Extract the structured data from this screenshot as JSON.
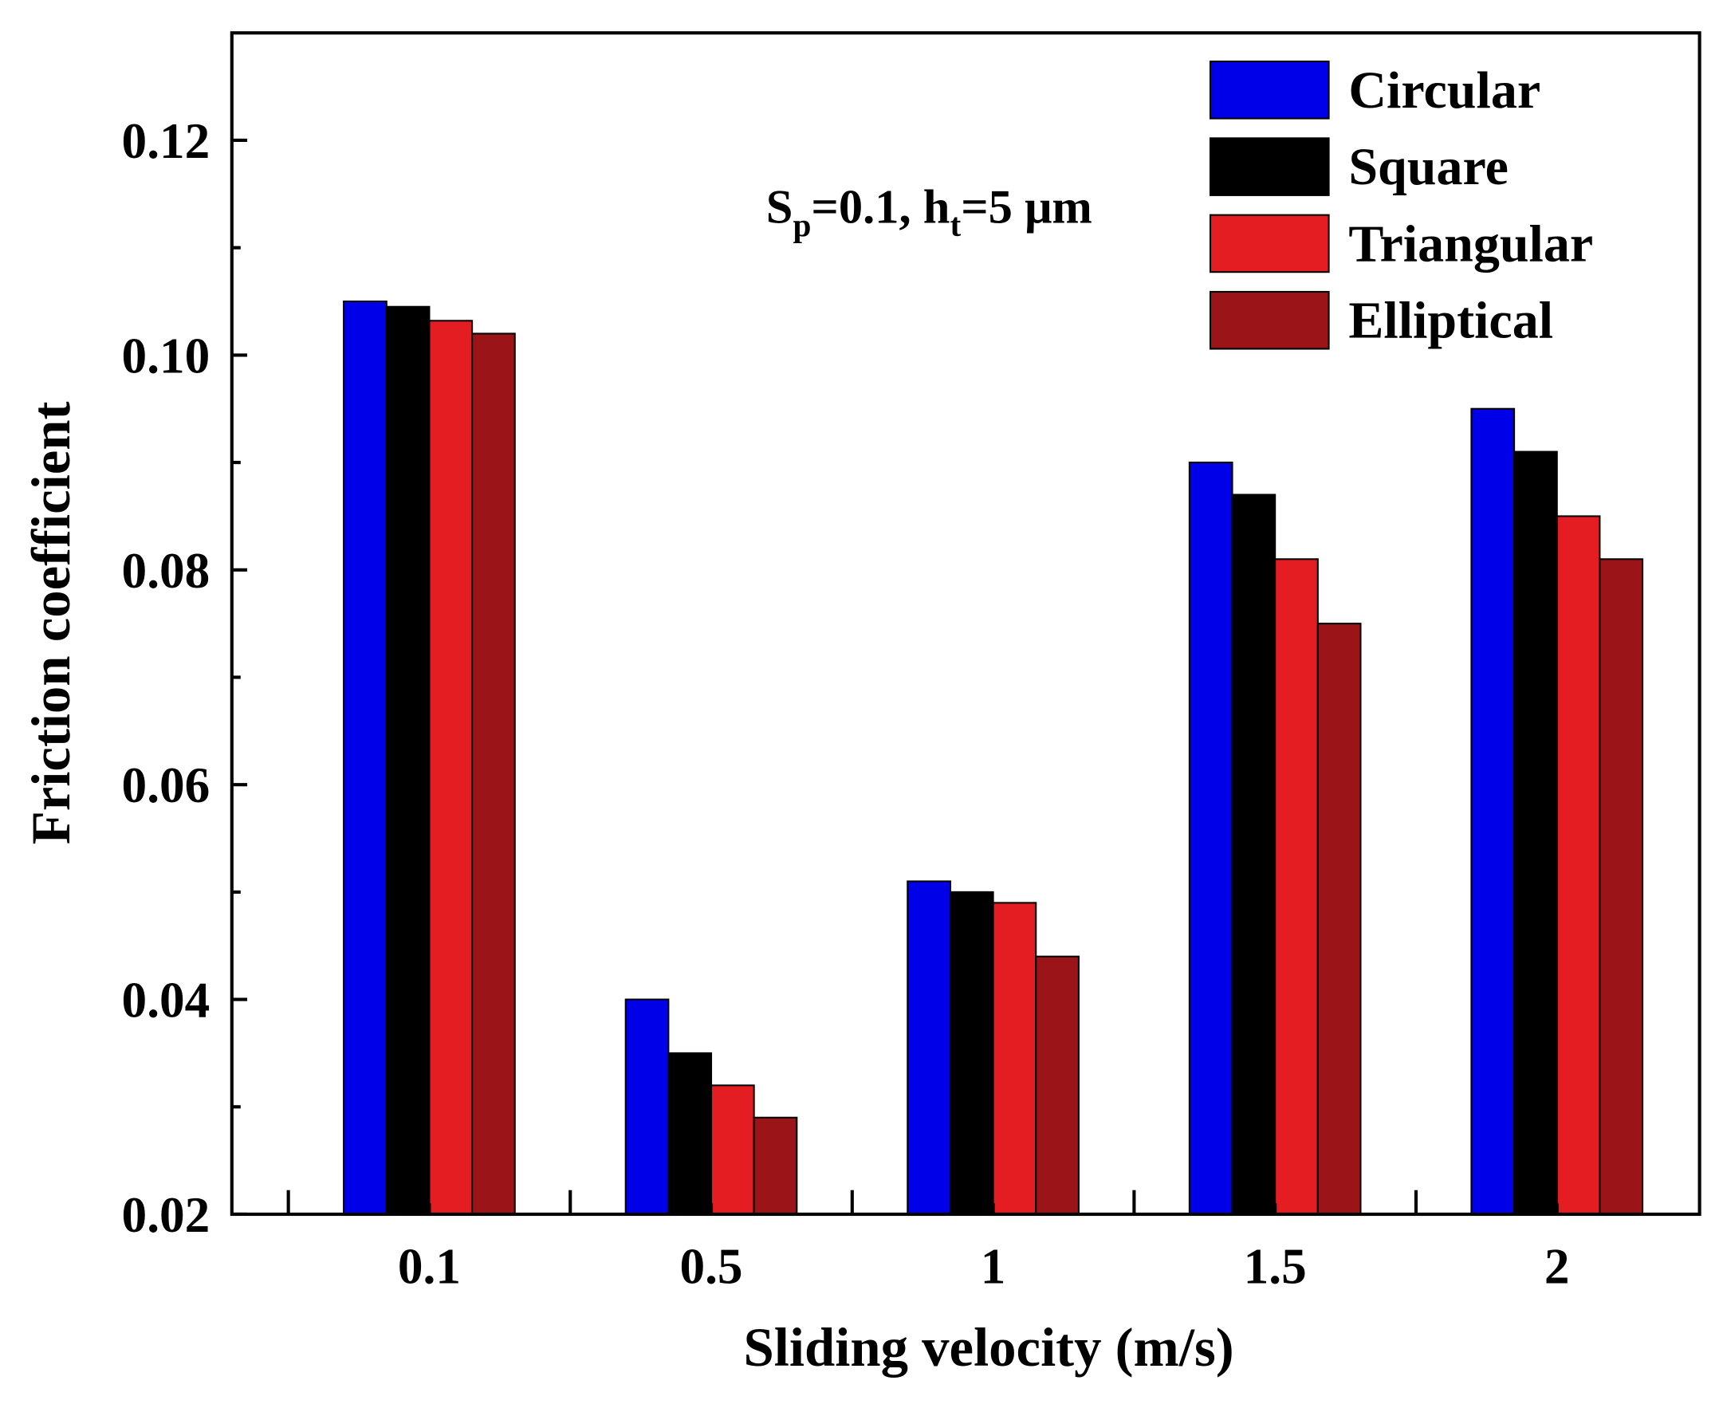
{
  "chart_data": {
    "type": "bar",
    "title": "",
    "xlabel": "Sliding velocity (m/s)",
    "ylabel": "Friction coefficient",
    "categories": [
      "0.1",
      "0.5",
      "1",
      "1.5",
      "2"
    ],
    "ylim": [
      0.02,
      0.13
    ],
    "yticks": [
      "0.02",
      "0.04",
      "0.06",
      "0.08",
      "0.10",
      "0.12"
    ],
    "ytick_values": [
      0.02,
      0.04,
      0.06,
      0.08,
      0.1,
      0.12
    ],
    "grid": false,
    "legend_position": "top-right",
    "annotation_parts": [
      {
        "text": "S",
        "sub": false
      },
      {
        "text": "p",
        "sub": true
      },
      {
        "text": "=0.1, h",
        "sub": false
      },
      {
        "text": "t",
        "sub": true
      },
      {
        "text": "=5 μm",
        "sub": false
      }
    ],
    "series": [
      {
        "name": "Circular",
        "color": "#0000e8",
        "values": [
          0.105,
          0.04,
          0.051,
          0.09,
          0.095
        ]
      },
      {
        "name": "Square",
        "color": "#000000",
        "values": [
          0.1045,
          0.035,
          0.05,
          0.087,
          0.091
        ]
      },
      {
        "name": "Triangular",
        "color": "#e31d21",
        "values": [
          0.1032,
          0.032,
          0.049,
          0.081,
          0.085
        ]
      },
      {
        "name": "Elliptical",
        "color": "#9b1417",
        "values": [
          0.102,
          0.029,
          0.044,
          0.075,
          0.081
        ]
      }
    ]
  }
}
